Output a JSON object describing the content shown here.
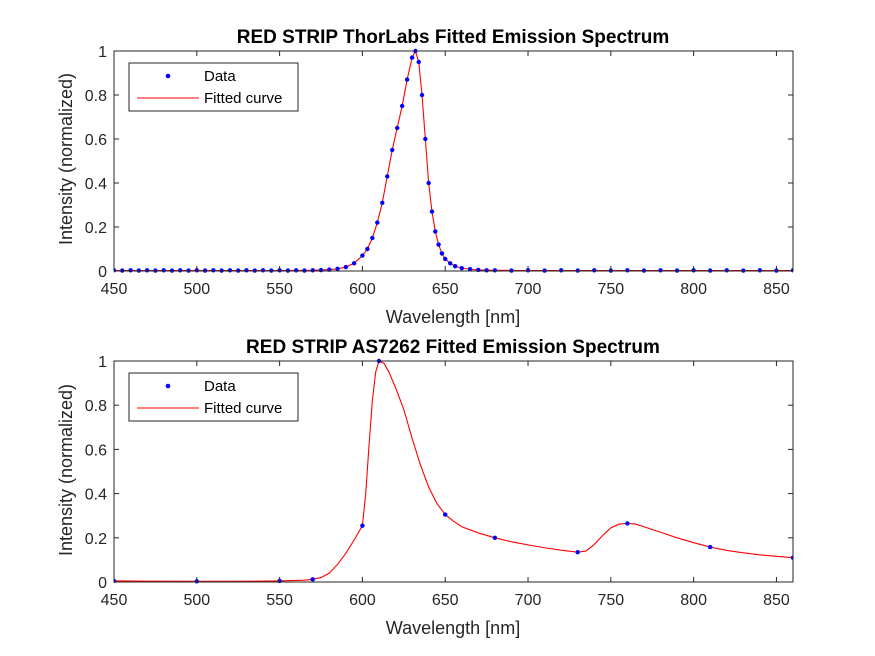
{
  "chart_data": [
    {
      "type": "line",
      "title": "RED STRIP ThorLabs Fitted Emission Spectrum",
      "xlabel": "Wavelength [nm]",
      "ylabel": "Intensity (normalized)",
      "xlim": [
        450,
        860
      ],
      "ylim": [
        0,
        1
      ],
      "xticks": [
        450,
        500,
        550,
        600,
        650,
        700,
        750,
        800,
        850
      ],
      "yticks": [
        0,
        0.2,
        0.4,
        0.6,
        0.8,
        1
      ],
      "ytick_labels": [
        "0",
        "0.2",
        "0.4",
        "0.6",
        "0.8",
        "1"
      ],
      "legend_position": "top-left",
      "grid": false,
      "series": [
        {
          "name": "Data",
          "style": "markers",
          "color": "#0000ff",
          "points": [
            [
              450,
              0.003
            ],
            [
              455,
              0.002
            ],
            [
              460,
              0.003
            ],
            [
              465,
              0.002
            ],
            [
              470,
              0.003
            ],
            [
              475,
              0.002
            ],
            [
              480,
              0.003
            ],
            [
              485,
              0.002
            ],
            [
              490,
              0.003
            ],
            [
              495,
              0.002
            ],
            [
              500,
              0.003
            ],
            [
              505,
              0.002
            ],
            [
              510,
              0.003
            ],
            [
              515,
              0.002
            ],
            [
              520,
              0.003
            ],
            [
              525,
              0.002
            ],
            [
              530,
              0.003
            ],
            [
              535,
              0.002
            ],
            [
              540,
              0.003
            ],
            [
              545,
              0.002
            ],
            [
              550,
              0.003
            ],
            [
              555,
              0.002
            ],
            [
              560,
              0.003
            ],
            [
              565,
              0.002
            ],
            [
              570,
              0.003
            ],
            [
              575,
              0.004
            ],
            [
              580,
              0.006
            ],
            [
              585,
              0.01
            ],
            [
              590,
              0.018
            ],
            [
              595,
              0.035
            ],
            [
              600,
              0.07
            ],
            [
              603,
              0.1
            ],
            [
              606,
              0.15
            ],
            [
              609,
              0.22
            ],
            [
              612,
              0.31
            ],
            [
              615,
              0.43
            ],
            [
              618,
              0.55
            ],
            [
              621,
              0.65
            ],
            [
              624,
              0.75
            ],
            [
              627,
              0.87
            ],
            [
              630,
              0.97
            ],
            [
              632,
              1.0
            ],
            [
              634,
              0.95
            ],
            [
              636,
              0.8
            ],
            [
              638,
              0.6
            ],
            [
              640,
              0.4
            ],
            [
              642,
              0.27
            ],
            [
              644,
              0.18
            ],
            [
              646,
              0.12
            ],
            [
              648,
              0.08
            ],
            [
              650,
              0.055
            ],
            [
              653,
              0.035
            ],
            [
              656,
              0.022
            ],
            [
              660,
              0.013
            ],
            [
              665,
              0.008
            ],
            [
              670,
              0.005
            ],
            [
              675,
              0.003
            ],
            [
              680,
              0.003
            ],
            [
              690,
              0.002
            ],
            [
              700,
              0.003
            ],
            [
              710,
              0.002
            ],
            [
              720,
              0.003
            ],
            [
              730,
              0.002
            ],
            [
              740,
              0.003
            ],
            [
              750,
              0.002
            ],
            [
              760,
              0.003
            ],
            [
              770,
              0.002
            ],
            [
              780,
              0.003
            ],
            [
              790,
              0.002
            ],
            [
              800,
              0.003
            ],
            [
              810,
              0.002
            ],
            [
              820,
              0.003
            ],
            [
              830,
              0.002
            ],
            [
              840,
              0.003
            ],
            [
              850,
              0.002
            ],
            [
              860,
              0.003
            ]
          ]
        },
        {
          "name": "Fitted curve",
          "style": "line",
          "color": "#ff0000",
          "points": [
            [
              450,
              0.002
            ],
            [
              500,
              0.002
            ],
            [
              550,
              0.002
            ],
            [
              570,
              0.003
            ],
            [
              580,
              0.006
            ],
            [
              585,
              0.01
            ],
            [
              590,
              0.018
            ],
            [
              595,
              0.035
            ],
            [
              600,
              0.07
            ],
            [
              603,
              0.1
            ],
            [
              606,
              0.15
            ],
            [
              609,
              0.22
            ],
            [
              612,
              0.31
            ],
            [
              615,
              0.43
            ],
            [
              618,
              0.55
            ],
            [
              621,
              0.65
            ],
            [
              624,
              0.75
            ],
            [
              627,
              0.87
            ],
            [
              630,
              0.97
            ],
            [
              632,
              1.0
            ],
            [
              634,
              0.95
            ],
            [
              636,
              0.8
            ],
            [
              638,
              0.6
            ],
            [
              640,
              0.4
            ],
            [
              642,
              0.27
            ],
            [
              644,
              0.18
            ],
            [
              646,
              0.12
            ],
            [
              648,
              0.08
            ],
            [
              650,
              0.055
            ],
            [
              653,
              0.035
            ],
            [
              656,
              0.022
            ],
            [
              660,
              0.013
            ],
            [
              665,
              0.008
            ],
            [
              670,
              0.005
            ],
            [
              680,
              0.003
            ],
            [
              700,
              0.002
            ],
            [
              750,
              0.002
            ],
            [
              800,
              0.002
            ],
            [
              860,
              0.002
            ]
          ]
        }
      ]
    },
    {
      "type": "line",
      "title": "RED STRIP AS7262 Fitted Emission Spectrum",
      "xlabel": "Wavelength [nm]",
      "ylabel": "Intensity (normalized)",
      "xlim": [
        450,
        860
      ],
      "ylim": [
        0,
        1
      ],
      "xticks": [
        450,
        500,
        550,
        600,
        650,
        700,
        750,
        800,
        850
      ],
      "yticks": [
        0,
        0.2,
        0.4,
        0.6,
        0.8,
        1
      ],
      "ytick_labels": [
        "0",
        "0.2",
        "0.4",
        "0.6",
        "0.8",
        "1"
      ],
      "legend_position": "top-left",
      "grid": false,
      "series": [
        {
          "name": "Data",
          "style": "markers",
          "color": "#0000ff",
          "points": [
            [
              450,
              0.005
            ],
            [
              500,
              0.003
            ],
            [
              550,
              0.005
            ],
            [
              570,
              0.012
            ],
            [
              600,
              0.255
            ],
            [
              610,
              1.0
            ],
            [
              650,
              0.305
            ],
            [
              680,
              0.2
            ],
            [
              730,
              0.135
            ],
            [
              760,
              0.265
            ],
            [
              810,
              0.158
            ],
            [
              860,
              0.11
            ]
          ]
        },
        {
          "name": "Fitted curve",
          "style": "line",
          "color": "#ff0000",
          "points": [
            [
              450,
              0.005
            ],
            [
              470,
              0.004
            ],
            [
              500,
              0.003
            ],
            [
              520,
              0.003
            ],
            [
              550,
              0.005
            ],
            [
              565,
              0.008
            ],
            [
              570,
              0.012
            ],
            [
              575,
              0.02
            ],
            [
              580,
              0.04
            ],
            [
              585,
              0.08
            ],
            [
              590,
              0.13
            ],
            [
              595,
              0.19
            ],
            [
              600,
              0.255
            ],
            [
              602,
              0.4
            ],
            [
              604,
              0.62
            ],
            [
              606,
              0.82
            ],
            [
              608,
              0.95
            ],
            [
              610,
              1.0
            ],
            [
              613,
              0.99
            ],
            [
              616,
              0.95
            ],
            [
              620,
              0.88
            ],
            [
              625,
              0.78
            ],
            [
              630,
              0.65
            ],
            [
              635,
              0.53
            ],
            [
              640,
              0.43
            ],
            [
              645,
              0.355
            ],
            [
              650,
              0.305
            ],
            [
              655,
              0.275
            ],
            [
              660,
              0.25
            ],
            [
              670,
              0.222
            ],
            [
              680,
              0.2
            ],
            [
              690,
              0.182
            ],
            [
              700,
              0.168
            ],
            [
              710,
              0.155
            ],
            [
              720,
              0.144
            ],
            [
              730,
              0.135
            ],
            [
              735,
              0.14
            ],
            [
              740,
              0.17
            ],
            [
              745,
              0.21
            ],
            [
              750,
              0.245
            ],
            [
              755,
              0.262
            ],
            [
              760,
              0.265
            ],
            [
              765,
              0.262
            ],
            [
              770,
              0.25
            ],
            [
              780,
              0.225
            ],
            [
              790,
              0.2
            ],
            [
              800,
              0.178
            ],
            [
              810,
              0.158
            ],
            [
              820,
              0.143
            ],
            [
              830,
              0.132
            ],
            [
              840,
              0.123
            ],
            [
              850,
              0.116
            ],
            [
              860,
              0.11
            ]
          ]
        }
      ]
    }
  ]
}
